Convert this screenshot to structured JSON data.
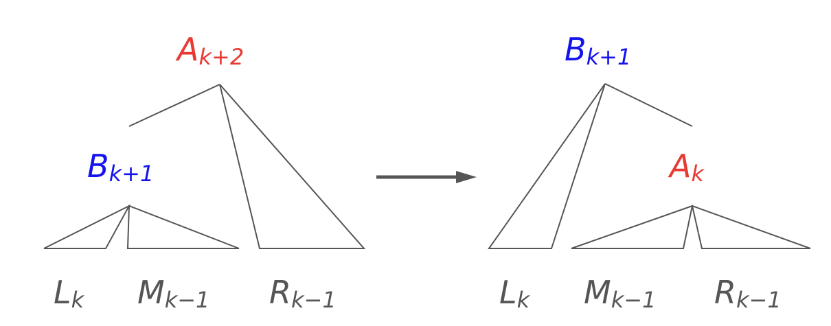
{
  "colors": {
    "red": "#e63a32",
    "blue": "#1313ee",
    "gray": "#555555"
  },
  "left_tree": {
    "root": {
      "main": "A",
      "sub": "k+2",
      "color": "red"
    },
    "child": {
      "main": "B",
      "sub": "k+1",
      "color": "blue"
    },
    "leaves": [
      {
        "main": "L",
        "sub": "k"
      },
      {
        "main": "M",
        "sub": "k−1"
      },
      {
        "main": "R",
        "sub": "k−1"
      }
    ]
  },
  "right_tree": {
    "root": {
      "main": "B",
      "sub": "k+1",
      "color": "blue"
    },
    "child": {
      "main": "A",
      "sub": "k",
      "color": "red"
    },
    "leaves": [
      {
        "main": "L",
        "sub": "k"
      },
      {
        "main": "M",
        "sub": "k−1"
      },
      {
        "main": "R",
        "sub": "k−1"
      }
    ]
  },
  "arrow": {
    "direction": "right"
  }
}
